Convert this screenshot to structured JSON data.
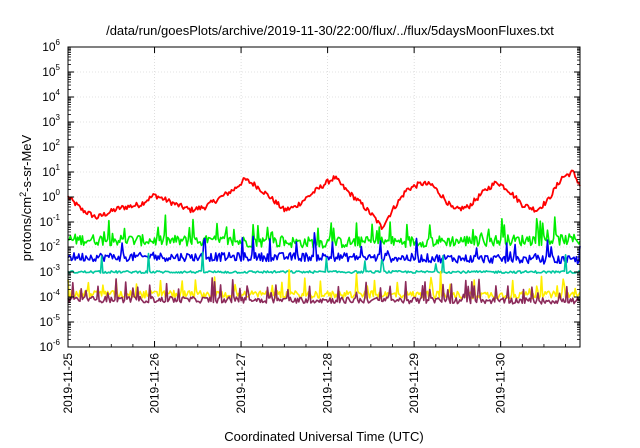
{
  "chart_data": {
    "type": "line",
    "title": "/data/run/goesPlots/archive/2019-11-30/22:00/flux/../flux/5daysMoonFluxes.txt",
    "xlabel": "Coordinated Universal Time (UTC)",
    "ylabel": {
      "prefix": "protons/cm",
      "sup": "2",
      "suffix": "-s-sr-MeV"
    },
    "yscale": "log",
    "ylim": [
      1e-06,
      1000000.0
    ],
    "y_ticks": [
      {
        "base": "10",
        "exp": "-6",
        "value": 1e-06
      },
      {
        "base": "10",
        "exp": "-5",
        "value": 1e-05
      },
      {
        "base": "10",
        "exp": "-4",
        "value": 0.0001
      },
      {
        "base": "10",
        "exp": "-3",
        "value": 0.001
      },
      {
        "base": "10",
        "exp": "-2",
        "value": 0.01
      },
      {
        "base": "10",
        "exp": "-1",
        "value": 0.1
      },
      {
        "base": "10",
        "exp": "0",
        "value": 1
      },
      {
        "base": "10",
        "exp": "1",
        "value": 10
      },
      {
        "base": "10",
        "exp": "2",
        "value": 100
      },
      {
        "base": "10",
        "exp": "3",
        "value": 1000
      },
      {
        "base": "10",
        "exp": "4",
        "value": 10000
      },
      {
        "base": "10",
        "exp": "5",
        "value": 100000
      },
      {
        "base": "10",
        "exp": "6",
        "value": 1000000
      }
    ],
    "x_ticks": [
      "2019-11-25",
      "2019-11-26",
      "2019-11-27",
      "2019-11-28",
      "2019-11-29",
      "2019-11-30"
    ],
    "xlim": [
      "2019-11-25T00:00",
      "2019-11-30T22:00"
    ],
    "grid": true,
    "legend": "none",
    "series": [
      {
        "color": "#ff0000",
        "noise": 0.22,
        "spikes": 0,
        "anchors": [
          [
            "2019-11-25T00:00",
            1.0
          ],
          [
            "2019-11-25T04:00",
            0.3
          ],
          [
            "2019-11-25T08:00",
            0.15
          ],
          [
            "2019-11-25T14:00",
            0.35
          ],
          [
            "2019-11-25T20:00",
            0.5
          ],
          [
            "2019-11-26T00:00",
            1.2
          ],
          [
            "2019-11-26T06:00",
            0.5
          ],
          [
            "2019-11-26T10:00",
            0.3
          ],
          [
            "2019-11-26T14:00",
            0.4
          ],
          [
            "2019-11-26T18:00",
            0.9
          ],
          [
            "2019-11-26T22:00",
            2.0
          ],
          [
            "2019-11-27T01:00",
            5.0
          ],
          [
            "2019-11-27T04:00",
            3.0
          ],
          [
            "2019-11-27T08:00",
            1.0
          ],
          [
            "2019-11-27T12:00",
            0.3
          ],
          [
            "2019-11-27T15:00",
            0.4
          ],
          [
            "2019-11-27T20:00",
            1.5
          ],
          [
            "2019-11-28T00:00",
            4.0
          ],
          [
            "2019-11-28T02:00",
            6.0
          ],
          [
            "2019-11-28T05:00",
            2.0
          ],
          [
            "2019-11-28T09:00",
            0.6
          ],
          [
            "2019-11-28T13:00",
            0.15
          ],
          [
            "2019-11-28T15:00",
            0.06
          ],
          [
            "2019-11-28T18:00",
            0.3
          ],
          [
            "2019-11-28T22:00",
            2.0
          ],
          [
            "2019-11-29T02:00",
            3.5
          ],
          [
            "2019-11-29T05:00",
            3.0
          ],
          [
            "2019-11-29T08:00",
            1.0
          ],
          [
            "2019-11-29T11:00",
            0.3
          ],
          [
            "2019-11-29T15:00",
            0.4
          ],
          [
            "2019-11-29T20:00",
            2.0
          ],
          [
            "2019-11-29T23:00",
            4.0
          ],
          [
            "2019-11-30T02:00",
            2.0
          ],
          [
            "2019-11-30T06:00",
            0.5
          ],
          [
            "2019-11-30T10:00",
            0.3
          ],
          [
            "2019-11-30T13:00",
            0.7
          ],
          [
            "2019-11-30T17:00",
            6.0
          ],
          [
            "2019-11-30T20:00",
            10.0
          ],
          [
            "2019-11-30T22:00",
            3.0
          ]
        ]
      },
      {
        "color": "#00ee00",
        "noise": 0.45,
        "spikes": 0.09,
        "anchors": [
          [
            "2019-11-25T00:00",
            0.02
          ],
          [
            "2019-11-28T00:00",
            0.015
          ],
          [
            "2019-11-30T22:00",
            0.02
          ]
        ]
      },
      {
        "color": "#0000ee",
        "noise": 0.35,
        "spikes": 0.07,
        "anchors": [
          [
            "2019-11-25T00:00",
            0.004
          ],
          [
            "2019-11-28T00:00",
            0.004
          ],
          [
            "2019-11-30T22:00",
            0.003
          ]
        ]
      },
      {
        "color": "#00c8a0",
        "noise": 0.1,
        "spikes": 0.02,
        "anchors": [
          [
            "2019-11-25T00:00",
            0.001
          ],
          [
            "2019-11-30T22:00",
            0.001
          ]
        ]
      },
      {
        "color": "#ffee00",
        "noise": 0.3,
        "spikes": 0.1,
        "anchors": [
          [
            "2019-11-25T00:00",
            0.00013
          ],
          [
            "2019-11-30T22:00",
            0.00012
          ]
        ]
      },
      {
        "color": "#8b2a5a",
        "noise": 0.25,
        "spikes": 0.12,
        "anchors": [
          [
            "2019-11-25T00:00",
            8e-05
          ],
          [
            "2019-11-30T22:00",
            7e-05
          ]
        ]
      }
    ]
  }
}
